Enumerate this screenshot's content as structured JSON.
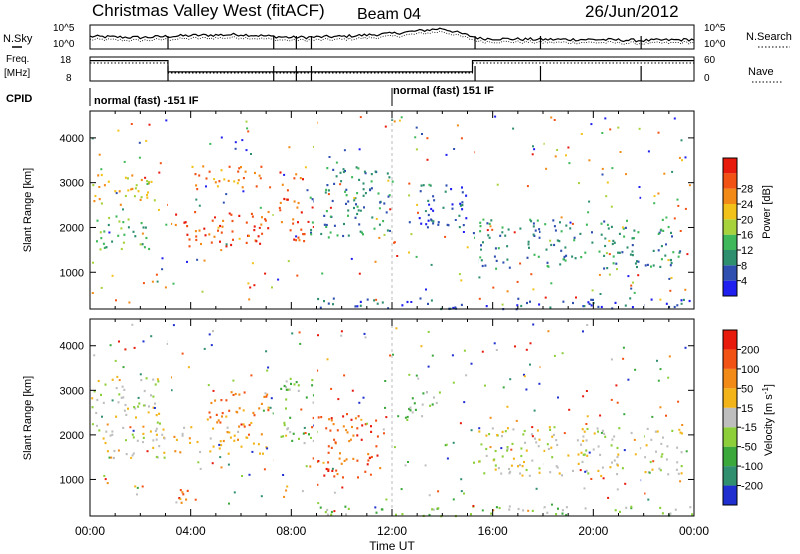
{
  "title": "Christmas Valley West (fitACF)",
  "beam": "Beam 04",
  "date": "26/Jun/2012",
  "labels": {
    "nsky": "N.Sky",
    "nsearch": "N.Search",
    "freq": "Freq.",
    "mhz": "[MHz]",
    "nave": "Nave",
    "cpid": "CPID"
  },
  "modes": [
    "normal (fast) -151 IF",
    "normal (fast) 151 IF"
  ],
  "chart_data": [
    {
      "type": "line",
      "panel": "noise",
      "yleft_ticks": [
        "10^5",
        "10^0"
      ],
      "yright_ticks": [
        "10^5",
        "10^0"
      ],
      "series": [
        {
          "name": "N.Sky"
        },
        {
          "name": "N.Search"
        }
      ],
      "note_points": [
        [
          0,
          0.55
        ],
        [
          2,
          0.5
        ],
        [
          4,
          0.6
        ],
        [
          6,
          0.65
        ],
        [
          8,
          0.5
        ],
        [
          10,
          0.55
        ],
        [
          12,
          0.7
        ],
        [
          14,
          0.95
        ],
        [
          15.5,
          0.45
        ],
        [
          18,
          0.4
        ],
        [
          20,
          0.4
        ],
        [
          22,
          0.35
        ],
        [
          24,
          0.4
        ]
      ]
    },
    {
      "type": "line",
      "panel": "freq-nave",
      "yleft_ticks": [
        "18",
        "8"
      ],
      "yright_ticks": [
        "60",
        "0"
      ],
      "series": [
        {
          "name": "Freq."
        },
        {
          "name": "Nave"
        }
      ],
      "freq_steps": [
        [
          0,
          16.5
        ],
        [
          3.1,
          11.8
        ],
        [
          15.2,
          16.5
        ],
        [
          24,
          16.5
        ]
      ],
      "nave_steps": [
        [
          0,
          45
        ],
        [
          3.1,
          20
        ],
        [
          15.2,
          45
        ],
        [
          24,
          45
        ]
      ]
    },
    {
      "type": "heatmap",
      "panel": "power",
      "ylabel": "Slant Range [km]",
      "yticks": [
        "1000",
        "2000",
        "3000",
        "4000"
      ],
      "ylim": [
        180,
        4600
      ],
      "xlim": [
        0,
        24
      ],
      "colorbar": {
        "label": "Power [dB]",
        "ticks": [
          "4",
          "8",
          "12",
          "16",
          "20",
          "24",
          "28"
        ],
        "colors": [
          "#1f1ff0",
          "#2f4fb0",
          "#2e8f6f",
          "#3fb85a",
          "#a8d23c",
          "#f2c21a",
          "#f28a17",
          "#f25214",
          "#e81a0c"
        ]
      },
      "features": [
        {
          "t0": 0.0,
          "t1": 2.8,
          "r0": 2500,
          "r1": 3200,
          "level": 5
        },
        {
          "t0": 0.2,
          "t1": 2.5,
          "r0": 1500,
          "r1": 2300,
          "level": 3
        },
        {
          "t0": 3.3,
          "t1": 7.2,
          "r0": 1600,
          "r1": 2400,
          "level": 7
        },
        {
          "t0": 4.0,
          "t1": 6.8,
          "r0": 2800,
          "r1": 3400,
          "level": 6
        },
        {
          "t0": 7.5,
          "t1": 8.6,
          "r0": 1700,
          "r1": 3300,
          "level": 7
        },
        {
          "t0": 8.7,
          "t1": 12.0,
          "r0": 1800,
          "r1": 3400,
          "level": 2
        },
        {
          "t0": 12.5,
          "t1": 15.0,
          "r0": 2000,
          "r1": 3000,
          "level": 1
        },
        {
          "t0": 15.2,
          "t1": 23.5,
          "r0": 1100,
          "r1": 2200,
          "level": 2
        },
        {
          "t0": 9.0,
          "t1": 24.0,
          "r0": 200,
          "r1": 450,
          "level": 1
        }
      ]
    },
    {
      "type": "heatmap",
      "panel": "velocity",
      "ylabel": "Slant Range [km]",
      "xlabel": "Time UT",
      "yticks": [
        "1000",
        "2000",
        "3000",
        "4000"
      ],
      "xticks": [
        "00:00",
        "04:00",
        "08:00",
        "12:00",
        "16:00",
        "20:00",
        "00:00"
      ],
      "ylim": [
        180,
        4600
      ],
      "xlim": [
        0,
        24
      ],
      "colorbar": {
        "label": "Velocity [m s",
        "label_sup": "-1",
        "label_end": "]",
        "ticks": [
          "200",
          "100",
          "50",
          "15",
          "-15",
          "-50",
          "-100",
          "-200"
        ],
        "colors": [
          "#1f2fd0",
          "#2f8f6f",
          "#3aa83a",
          "#8ccf3a",
          "#bebebe",
          "#f2b418",
          "#f28a17",
          "#f25214",
          "#e81a0c"
        ]
      },
      "features": [
        {
          "t0": 0.0,
          "t1": 2.8,
          "r0": 2400,
          "r1": 3300,
          "level": 4
        },
        {
          "t0": 0.2,
          "t1": 3.0,
          "r0": 1500,
          "r1": 2300,
          "level": 4
        },
        {
          "t0": 3.3,
          "t1": 7.0,
          "r0": 1600,
          "r1": 2200,
          "level": 5
        },
        {
          "t0": 4.5,
          "t1": 7.2,
          "r0": 2200,
          "r1": 3000,
          "level": 6
        },
        {
          "t0": 7.5,
          "t1": 9.0,
          "r0": 1800,
          "r1": 3300,
          "level": 3
        },
        {
          "t0": 8.7,
          "t1": 11.5,
          "r0": 1000,
          "r1": 2500,
          "level": 7
        },
        {
          "t0": 12.5,
          "t1": 14.0,
          "r0": 2300,
          "r1": 3000,
          "level": 3
        },
        {
          "t0": 15.2,
          "t1": 23.5,
          "r0": 1100,
          "r1": 2200,
          "level": 4
        },
        {
          "t0": 3.5,
          "t1": 4.5,
          "r0": 500,
          "r1": 900,
          "level": 7
        },
        {
          "t0": 9.0,
          "t1": 24.0,
          "r0": 200,
          "r1": 420,
          "level": 3
        }
      ]
    }
  ]
}
